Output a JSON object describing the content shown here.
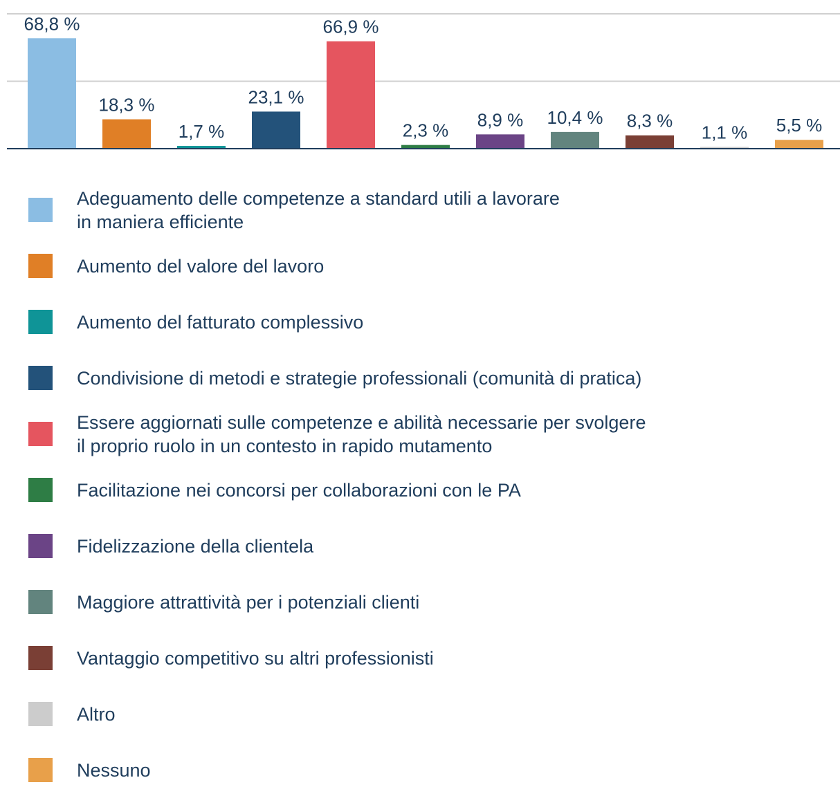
{
  "chart_data": {
    "type": "bar",
    "categories": [
      "Adeguamento delle competenze a standard utili a lavorare\nin maniera efficiente",
      "Aumento del valore del lavoro",
      "Aumento del fatturato complessivo",
      "Condivisione di metodi e strategie professionali (comunità di pratica)",
      "Essere aggiornati sulle competenze e abilità necessarie per svolgere\nil proprio ruolo in un contesto in rapido mutamento",
      "Facilitazione nei concorsi per collaborazioni con le PA",
      "Fidelizzazione della clientela",
      "Maggiore attrattività per i potenziali clienti",
      "Vantaggio competitivo su altri professionisti",
      "Altro",
      "Nessuno"
    ],
    "values": [
      68.8,
      18.3,
      1.7,
      23.1,
      66.9,
      2.3,
      8.9,
      10.4,
      8.3,
      1.1,
      5.5
    ],
    "value_labels": [
      "68,8 %",
      "18,3 %",
      "1,7 %",
      "23,1 %",
      "66,9 %",
      "2,3 %",
      "8,9 %",
      "10,4 %",
      "8,3 %",
      "1,1 %",
      "5,5 %"
    ],
    "colors": [
      "#8bbde3",
      "#e07f26",
      "#0f9497",
      "#23527a",
      "#e5555f",
      "#2e7d45",
      "#6b4486",
      "#62847e",
      "#7a3f35",
      "#cccccc",
      "#e8a04a"
    ],
    "ylim": [
      0,
      84
    ],
    "yticks": [
      0,
      42,
      84
    ],
    "grid": true
  }
}
